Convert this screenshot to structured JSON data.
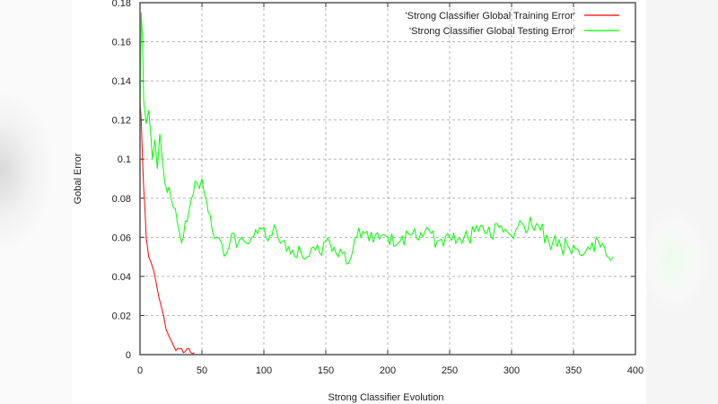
{
  "chart_data": {
    "type": "line",
    "title": "",
    "xlabel": "Strong Classifier Evolution",
    "ylabel": "Gobal Error",
    "xlim": [
      0,
      400
    ],
    "ylim": [
      0,
      0.18
    ],
    "xticks": [
      0,
      50,
      100,
      150,
      200,
      250,
      300,
      350,
      400
    ],
    "yticks": [
      0,
      0.02,
      0.04,
      0.06,
      0.08,
      0.1,
      0.12,
      0.14,
      0.16,
      0.18
    ],
    "xtick_labels": [
      "0",
      "50",
      "100",
      "150",
      "200",
      "250",
      "300",
      "350",
      "400"
    ],
    "ytick_labels": [
      "0",
      "0.02",
      "0.04",
      "0.06",
      "0.08",
      "0.1",
      "0.12",
      "0.14",
      "0.16",
      "0.18"
    ],
    "grid": true,
    "legend_position": "upper right",
    "series": [
      {
        "name": "'Strong Classifier Global Training Error'",
        "color": "#ff0000",
        "x": [
          0,
          1,
          2,
          3,
          4,
          5,
          7,
          9,
          11,
          13,
          15,
          17,
          19,
          21,
          23,
          26,
          29,
          32,
          35,
          38,
          41,
          44
        ],
        "y": [
          0.13,
          0.12,
          0.1,
          0.085,
          0.075,
          0.06,
          0.05,
          0.047,
          0.043,
          0.037,
          0.03,
          0.025,
          0.02,
          0.013,
          0.01,
          0.006,
          0.002,
          0.003,
          0.001,
          0.003,
          0.001,
          0.001
        ]
      },
      {
        "name": "'Strong Classifier Global Testing Error'",
        "color": "#00ff00",
        "x": [
          0,
          1,
          2,
          3,
          5,
          7,
          9,
          10,
          12,
          14,
          16,
          18,
          20,
          22,
          25,
          27,
          30,
          32,
          35,
          38,
          40,
          43,
          46,
          48,
          50,
          52,
          55,
          58,
          62,
          66,
          70,
          74,
          78,
          82,
          86,
          90,
          95,
          100,
          105,
          110,
          115,
          120,
          125,
          130,
          135,
          140,
          145,
          150,
          155,
          160,
          170,
          175,
          180,
          185,
          190,
          200,
          210,
          220,
          230,
          240,
          250,
          260,
          270,
          275,
          280,
          290,
          300,
          310,
          320,
          330,
          340,
          350,
          360,
          370,
          375,
          378,
          382
        ],
        "y": [
          0.12,
          0.175,
          0.16,
          0.13,
          0.118,
          0.125,
          0.11,
          0.1,
          0.11,
          0.095,
          0.113,
          0.1,
          0.088,
          0.083,
          0.08,
          0.075,
          0.068,
          0.062,
          0.06,
          0.068,
          0.075,
          0.082,
          0.088,
          0.085,
          0.09,
          0.082,
          0.073,
          0.065,
          0.06,
          0.057,
          0.052,
          0.062,
          0.055,
          0.06,
          0.057,
          0.06,
          0.062,
          0.065,
          0.061,
          0.064,
          0.058,
          0.055,
          0.05,
          0.052,
          0.05,
          0.055,
          0.052,
          0.058,
          0.053,
          0.05,
          0.049,
          0.06,
          0.063,
          0.058,
          0.061,
          0.06,
          0.058,
          0.062,
          0.063,
          0.058,
          0.06,
          0.057,
          0.063,
          0.066,
          0.062,
          0.065,
          0.061,
          0.066,
          0.067,
          0.058,
          0.055,
          0.056,
          0.053,
          0.058,
          0.055,
          0.05,
          0.05
        ]
      }
    ]
  },
  "legend": {
    "training_label": "'Strong Classifier Global Training Error'",
    "testing_label": "'Strong Classifier Global Testing Error'"
  },
  "axes": {
    "xlabel": "Strong Classifier Evolution",
    "ylabel": "Gobal Error"
  },
  "colors": {
    "training": "#ff0000",
    "testing": "#00ff00",
    "frame": "#555555",
    "grid": "#b4b4b4"
  }
}
